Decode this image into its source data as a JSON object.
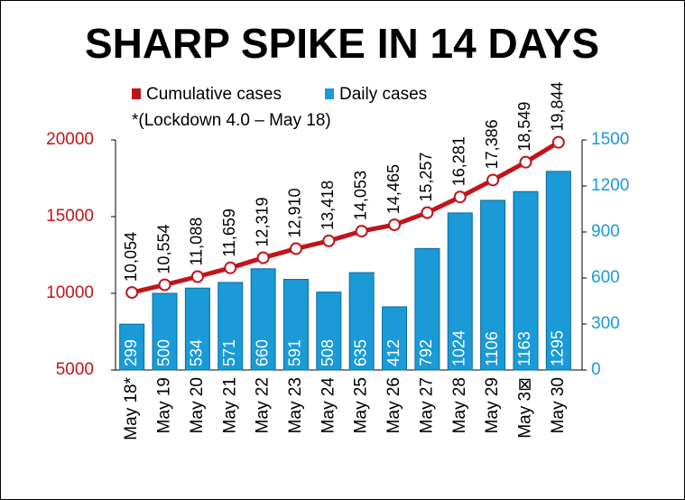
{
  "chart_data": {
    "type": "bar_line",
    "title": "SHARP SPIKE IN 14 DAYS",
    "annotation": "*(Lockdown 4.0 – May 18)",
    "categories": [
      "May 18*",
      "May 19",
      "May 20",
      "May 21",
      "May 22",
      "May 23",
      "May 24",
      "May 25",
      "May 26",
      "May 27",
      "May 28",
      "May 29",
      "May 3⊠",
      "May 30"
    ],
    "series": [
      {
        "name": "Cumulative cases",
        "color": "#c0151a",
        "type": "line",
        "values": [
          10054,
          10554,
          11088,
          11659,
          12319,
          12910,
          13418,
          14053,
          14465,
          15257,
          16281,
          17386,
          18549,
          19844
        ],
        "value_labels": [
          "10,054",
          "10,554",
          "11,088",
          "11,659",
          "12,319",
          "12,910",
          "13,418",
          "14,053",
          "14,465",
          "15,257",
          "16,281",
          "17,386",
          "18,549",
          "19,844"
        ]
      },
      {
        "name": "Daily cases",
        "color": "#1a9ad6",
        "type": "bar",
        "axis": "y2",
        "values": [
          299,
          500,
          534,
          571,
          660,
          591,
          508,
          635,
          412,
          792,
          1024,
          1106,
          1163,
          1295
        ]
      }
    ],
    "ylim": [
      5000,
      20000
    ],
    "yticks": [
      5000,
      10000,
      15000,
      20000
    ],
    "ycolor": "#c0151a",
    "y2lim": [
      0,
      1500
    ],
    "y2ticks": [
      0,
      300,
      600,
      900,
      1200,
      1500
    ],
    "y2color": "#1a9ad6"
  }
}
